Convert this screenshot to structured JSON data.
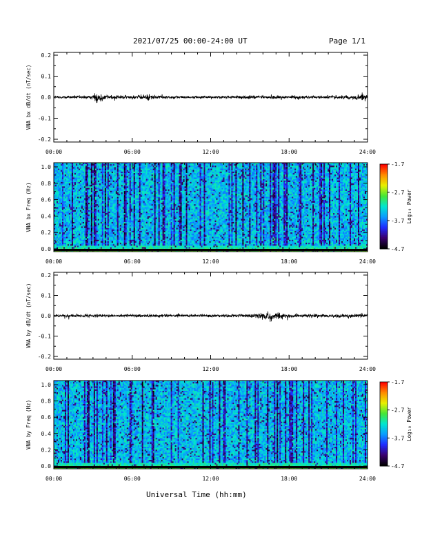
{
  "header": {
    "title": "2021/07/25  00:00-24:00 UT",
    "page": "Page 1/1"
  },
  "x_axis_label": "Universal Time (hh:mm)",
  "colorbar": {
    "label": "Log₁₀ Power",
    "ticks": [
      "-1.7",
      "-2.7",
      "-3.7",
      "-4.7"
    ],
    "range": [
      -4.7,
      -1.7
    ],
    "colors": [
      "#000000",
      "#3a006e",
      "#1f2cff",
      "#0a9cff",
      "#00e6d0",
      "#46e636",
      "#e8f000",
      "#ff8c00",
      "#ff0000"
    ]
  },
  "chart_data": [
    {
      "type": "line",
      "ylabel": "VNA bx dB/dt (nT/sec)",
      "xlim": [
        "00:00",
        "24:00"
      ],
      "ylim": [
        -0.2,
        0.2
      ],
      "x_ticks": [
        "00:00",
        "06:00",
        "12:00",
        "18:00",
        "24:00"
      ],
      "y_ticks": [
        "0.2",
        "0.1",
        "0.0",
        "-0.1",
        "-0.2"
      ],
      "trace_hours": [
        0,
        1,
        2,
        3,
        3.3,
        4,
        5,
        6,
        7,
        7.3,
        8,
        9,
        10,
        11,
        12,
        13,
        14,
        15,
        16,
        17,
        18,
        19,
        20,
        21,
        22,
        23,
        23.6,
        24
      ],
      "trace_amplitude": [
        0.008,
        0.008,
        0.009,
        0.012,
        0.035,
        0.015,
        0.012,
        0.012,
        0.015,
        0.02,
        0.01,
        0.008,
        0.008,
        0.008,
        0.008,
        0.008,
        0.008,
        0.01,
        0.012,
        0.012,
        0.01,
        0.009,
        0.009,
        0.009,
        0.01,
        0.012,
        0.025,
        0.02
      ]
    },
    {
      "type": "heatmap",
      "ylabel": "VNA bx Freq (Hz)",
      "xlim": [
        "00:00",
        "24:00"
      ],
      "ylim": [
        0.0,
        1.0
      ],
      "x_ticks": [
        "00:00",
        "06:00",
        "12:00",
        "18:00",
        "24:00"
      ],
      "y_ticks": [
        "1.0",
        "0.8",
        "0.6",
        "0.4",
        "0.2",
        "0.0"
      ],
      "zlim": [
        -4.7,
        -1.7
      ],
      "zlabel": "Log₁₀ Power",
      "cbar_ticks": [
        "-1.7",
        "-2.7",
        "-3.7",
        "-4.7"
      ]
    },
    {
      "type": "line",
      "ylabel": "VNA by dB/dt (nT/sec)",
      "xlim": [
        "00:00",
        "24:00"
      ],
      "ylim": [
        -0.2,
        0.2
      ],
      "x_ticks": [
        "00:00",
        "06:00",
        "12:00",
        "18:00",
        "24:00"
      ],
      "y_ticks": [
        "0.2",
        "0.1",
        "0.0",
        "-0.1",
        "-0.2"
      ],
      "trace_hours": [
        0,
        1,
        2,
        3,
        4,
        5,
        6,
        7,
        8,
        9,
        10,
        11,
        12,
        13,
        14,
        15,
        16,
        16.6,
        17,
        18,
        19,
        20,
        21,
        22,
        23,
        24
      ],
      "trace_amplitude": [
        0.008,
        0.008,
        0.009,
        0.012,
        0.009,
        0.009,
        0.009,
        0.009,
        0.009,
        0.009,
        0.009,
        0.009,
        0.009,
        0.009,
        0.01,
        0.012,
        0.022,
        0.03,
        0.022,
        0.012,
        0.01,
        0.01,
        0.01,
        0.01,
        0.011,
        0.012
      ]
    },
    {
      "type": "heatmap",
      "ylabel": "VNA by Freq (Hz)",
      "xlim": [
        "00:00",
        "24:00"
      ],
      "ylim": [
        0.0,
        1.0
      ],
      "x_ticks": [
        "00:00",
        "06:00",
        "12:00",
        "18:00",
        "24:00"
      ],
      "y_ticks": [
        "1.0",
        "0.8",
        "0.6",
        "0.4",
        "0.2",
        "0.0"
      ],
      "zlim": [
        -4.7,
        -1.7
      ],
      "zlabel": "Log₁₀ Power",
      "cbar_ticks": [
        "-1.7",
        "-2.7",
        "-3.7",
        "-4.7"
      ]
    }
  ]
}
